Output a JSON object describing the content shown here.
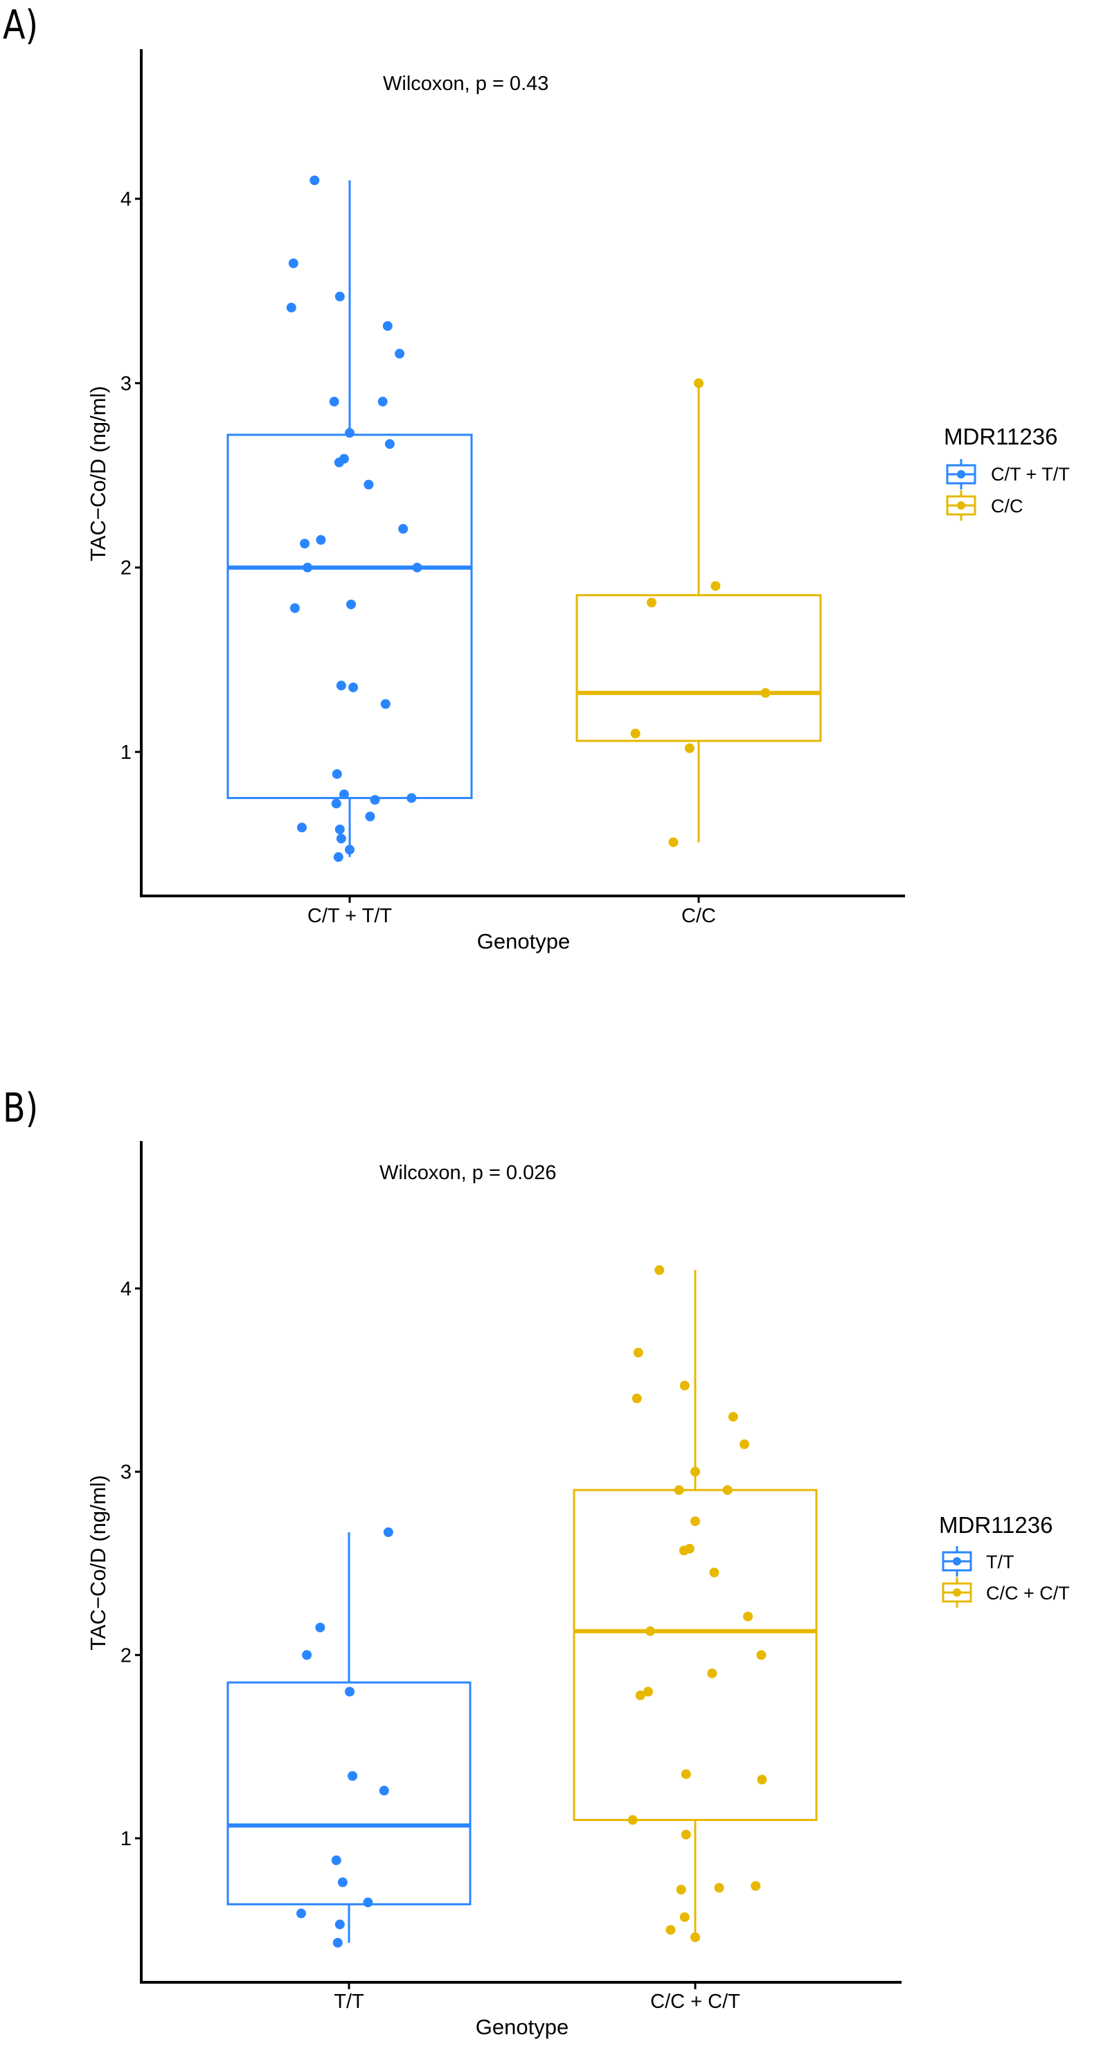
{
  "chart_data": [
    {
      "type": "box",
      "panel_label": "A)",
      "annotation": "Wilcoxon, p = 0.43",
      "xlabel": "Genotype",
      "ylabel": "TAC−Co/D (ng/ml)",
      "categories": [
        "C/T + T/T",
        "C/C"
      ],
      "ylim": [
        0.21,
        4.81
      ],
      "yticks": [
        "1",
        "2",
        "3",
        "4"
      ],
      "grid": false,
      "legend": {
        "title": "MDR11236",
        "placement": "right",
        "entries": [
          "C/T + T/T",
          "C/C"
        ]
      },
      "series": [
        {
          "name": "C/T + T/T",
          "color": "#2A86FF",
          "box": {
            "min": 0.43,
            "q1": 0.75,
            "median": 2.0,
            "q3": 2.72,
            "max": 4.1
          },
          "points": [
            4.1,
            3.65,
            3.47,
            3.41,
            3.31,
            3.16,
            2.9,
            2.9,
            2.73,
            2.67,
            2.59,
            2.57,
            2.45,
            2.21,
            2.15,
            2.13,
            2.0,
            2.0,
            1.8,
            1.78,
            1.36,
            1.35,
            1.26,
            0.88,
            0.77,
            0.72,
            0.74,
            0.75,
            0.65,
            0.59,
            0.58,
            0.53,
            0.47,
            0.43
          ]
        },
        {
          "name": "C/C",
          "color": "#E7B800",
          "box": {
            "min": 0.51,
            "q1": 1.06,
            "median": 1.32,
            "q3": 1.85,
            "max": 3.0
          },
          "points": [
            3.0,
            1.9,
            1.81,
            1.32,
            1.1,
            1.02,
            0.51
          ]
        }
      ]
    },
    {
      "type": "box",
      "panel_label": "B)",
      "annotation": "Wilcoxon, p = 0.026",
      "xlabel": "Genotype",
      "ylabel": "TAC−Co/D (ng/ml)",
      "categories": [
        "T/T",
        "C/C + C/T"
      ],
      "ylim": [
        0.21,
        4.81
      ],
      "yticks": [
        "1",
        "2",
        "3",
        "4"
      ],
      "grid": false,
      "legend": {
        "title": "MDR11236",
        "placement": "right",
        "entries": [
          "T/T",
          "C/C + C/T"
        ]
      },
      "series": [
        {
          "name": "T/T",
          "color": "#2A86FF",
          "box": {
            "min": 0.43,
            "q1": 0.64,
            "median": 1.07,
            "q3": 1.85,
            "max": 2.67
          },
          "points": [
            2.67,
            2.15,
            2.0,
            1.8,
            1.34,
            1.26,
            0.88,
            0.76,
            0.65,
            0.59,
            0.53,
            0.43
          ]
        },
        {
          "name": "C/C + C/T",
          "color": "#E7B800",
          "box": {
            "min": 0.46,
            "q1": 1.1,
            "median": 2.13,
            "q3": 2.9,
            "max": 4.1
          },
          "points": [
            4.1,
            3.65,
            3.47,
            3.4,
            3.3,
            3.15,
            3.0,
            2.9,
            2.9,
            2.73,
            2.57,
            2.58,
            2.45,
            2.21,
            2.13,
            2.0,
            1.9,
            1.78,
            1.8,
            1.35,
            1.32,
            1.1,
            1.02,
            0.72,
            0.73,
            0.74,
            0.57,
            0.5,
            0.46
          ]
        }
      ]
    }
  ]
}
